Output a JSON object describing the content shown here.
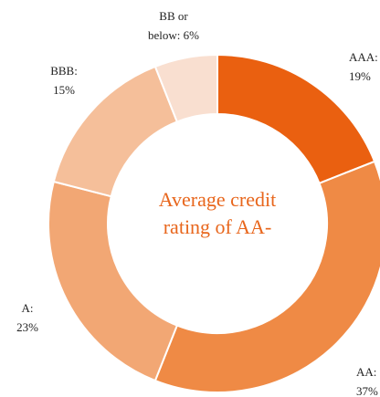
{
  "chart_data": {
    "type": "donut",
    "categories": [
      "AAA:",
      "AA:",
      "A:",
      "BBB:",
      "BB or below:"
    ],
    "values": [
      19,
      37,
      23,
      15,
      6
    ],
    "value_labels": [
      "19%",
      "37%",
      "23%",
      "15%",
      "6%"
    ],
    "colors": [
      "#ea6010",
      "#ef8a45",
      "#f2a774",
      "#f5bf9a",
      "#f9dfd0"
    ],
    "annotation": "Average credit rating of AA-"
  }
}
